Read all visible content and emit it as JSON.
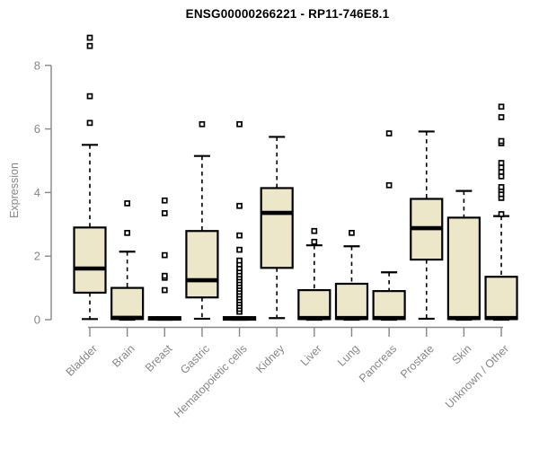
{
  "chart_data": {
    "type": "box",
    "title": "ENSG00000266221 - RP11-746E8.1",
    "ylabel": "Expression",
    "xlabel": "",
    "ylim": [
      0,
      8.9
    ],
    "yticks": [
      0,
      2,
      4,
      6,
      8
    ],
    "grid": false,
    "legend": "none",
    "colors": {
      "box_fill": "#EDE7C9",
      "box_border": "#000000",
      "median": "#000000",
      "axis": "#878787",
      "title": "#000000"
    },
    "categories": [
      "Bladder",
      "Brain",
      "Breast",
      "Gastric",
      "Hematopoietic cells",
      "Kidney",
      "Liver",
      "Lung",
      "Pancreas",
      "Prostate",
      "Skin",
      "Unknown / Other"
    ],
    "series": [
      {
        "name": "Bladder",
        "whisker_low": 0.02,
        "q1": 0.85,
        "median": 1.61,
        "q3": 2.9,
        "whisker_high": 5.5,
        "outliers": [
          6.19,
          7.03,
          8.61,
          8.87
        ]
      },
      {
        "name": "Brain",
        "whisker_low": 0.0,
        "q1": 0.02,
        "median": 0.06,
        "q3": 1.0,
        "whisker_high": 2.14,
        "outliers": [
          2.73,
          3.66
        ]
      },
      {
        "name": "Breast",
        "whisker_low": 0.0,
        "q1": 0.0,
        "median": 0.04,
        "q3": 0.08,
        "whisker_high": 0.08,
        "outliers": [
          0.93,
          1.32,
          1.38,
          2.03,
          3.35,
          3.75
        ]
      },
      {
        "name": "Gastric",
        "whisker_low": 0.03,
        "q1": 0.7,
        "median": 1.24,
        "q3": 2.79,
        "whisker_high": 5.15,
        "outliers": [
          6.15
        ]
      },
      {
        "name": "Hematopoietic cells",
        "whisker_low": 0.0,
        "q1": 0.0,
        "median": 0.04,
        "q3": 0.08,
        "whisker_high": 0.08,
        "outliers": [
          0.25,
          0.34,
          0.43,
          0.52,
          0.61,
          0.7,
          0.79,
          0.88,
          0.97,
          1.06,
          1.15,
          1.24,
          1.33,
          1.42,
          1.52,
          1.62,
          1.74,
          1.86,
          2.2,
          2.65,
          3.58,
          6.15
        ]
      },
      {
        "name": "Kidney",
        "whisker_low": 0.05,
        "q1": 1.63,
        "median": 3.36,
        "q3": 4.14,
        "whisker_high": 5.75,
        "outliers": []
      },
      {
        "name": "Liver",
        "whisker_low": 0.0,
        "q1": 0.02,
        "median": 0.05,
        "q3": 0.93,
        "whisker_high": 2.34,
        "outliers": [
          2.45,
          2.79
        ]
      },
      {
        "name": "Lung",
        "whisker_low": 0.0,
        "q1": 0.02,
        "median": 0.05,
        "q3": 1.13,
        "whisker_high": 2.31,
        "outliers": [
          2.73
        ]
      },
      {
        "name": "Pancreas",
        "whisker_low": 0.0,
        "q1": 0.02,
        "median": 0.05,
        "q3": 0.9,
        "whisker_high": 1.49,
        "outliers": [
          4.23,
          5.86
        ]
      },
      {
        "name": "Prostate",
        "whisker_low": 0.03,
        "q1": 1.89,
        "median": 2.88,
        "q3": 3.8,
        "whisker_high": 5.92,
        "outliers": []
      },
      {
        "name": "Skin",
        "whisker_low": 0.0,
        "q1": 0.02,
        "median": 0.05,
        "q3": 3.21,
        "whisker_high": 4.05,
        "outliers": []
      },
      {
        "name": "Unknown / Other",
        "whisker_low": 0.0,
        "q1": 0.02,
        "median": 0.05,
        "q3": 1.35,
        "whisker_high": 3.26,
        "outliers": [
          3.32,
          3.83,
          3.95,
          4.08,
          4.17,
          4.51,
          4.65,
          4.79,
          4.93,
          5.55,
          5.62,
          6.37,
          6.7
        ]
      }
    ]
  }
}
